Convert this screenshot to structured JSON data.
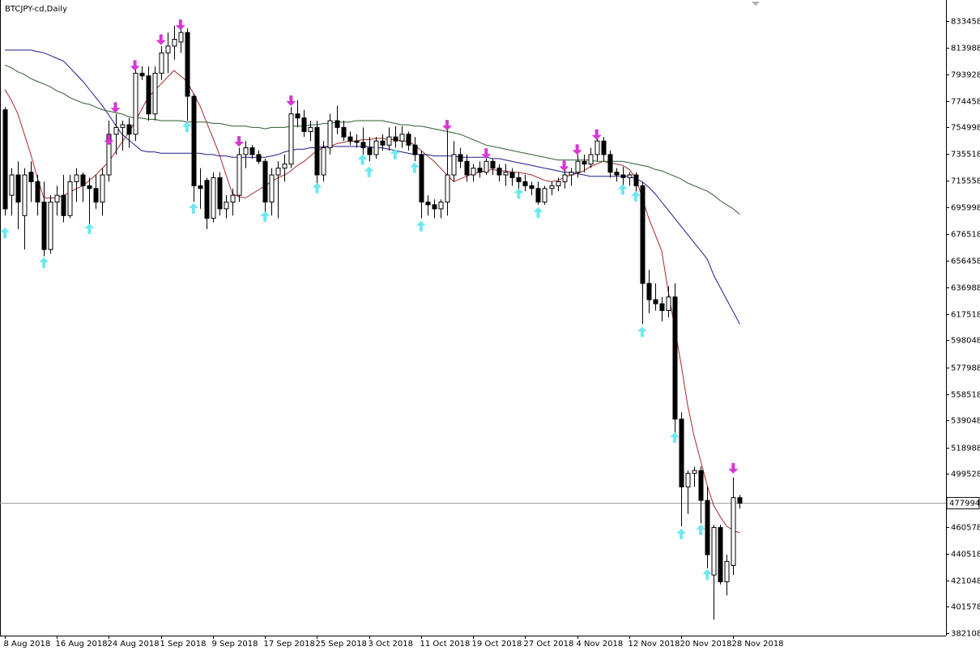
{
  "chart_data": {
    "type": "candlestick",
    "title": "BTCJPY-cd,Daily",
    "categories": [
      "8 Aug 2018",
      null,
      null,
      null,
      null,
      null,
      null,
      null,
      "16 Aug 2018",
      null,
      null,
      null,
      null,
      null,
      null,
      null,
      "24 Aug 2018",
      null,
      null,
      null,
      null,
      null,
      null,
      null,
      "1 Sep 2018",
      null,
      null,
      null,
      null,
      null,
      null,
      null,
      "9 Sep 2018",
      null,
      null,
      null,
      null,
      null,
      null,
      null,
      "17 Sep 2018",
      null,
      null,
      null,
      null,
      null,
      null,
      null,
      "25 Sep 2018",
      null,
      null,
      null,
      null,
      null,
      null,
      null,
      "3 Oct 2018",
      null,
      null,
      null,
      null,
      null,
      null,
      null,
      "11 Oct 2018",
      null,
      null,
      null,
      null,
      null,
      null,
      null,
      "19 Oct 2018",
      null,
      null,
      null,
      null,
      null,
      null,
      null,
      "27 Oct 2018",
      null,
      null,
      null,
      null,
      null,
      null,
      null,
      "4 Nov 2018",
      null,
      null,
      null,
      null,
      null,
      null,
      null,
      "12 Nov 2018",
      null,
      null,
      null,
      null,
      null,
      null,
      null,
      "20 Nov 2018",
      null,
      null,
      null,
      null,
      null,
      null,
      null,
      "28 Nov 2018",
      null
    ],
    "open": [
      768000,
      705000,
      720000,
      690000,
      722000,
      715000,
      700000,
      665000,
      700000,
      705000,
      690000,
      715000,
      720000,
      712000,
      710000,
      700000,
      720000,
      750000,
      755000,
      757000,
      750000,
      795000,
      793000,
      765000,
      795000,
      810000,
      815000,
      818000,
      825000,
      778000,
      712000,
      716000,
      688000,
      718000,
      695000,
      700000,
      705000,
      735000,
      740000,
      735000,
      730000,
      700000,
      720000,
      725000,
      728000,
      765000,
      762000,
      752000,
      755000,
      720000,
      740000,
      760000,
      755000,
      748000,
      745000,
      744000,
      740000,
      735000,
      745000,
      742000,
      748000,
      745000,
      750000,
      742000,
      735000,
      700000,
      698000,
      695000,
      700000,
      720000,
      735000,
      730000,
      720000,
      725000,
      722000,
      730000,
      725000,
      720000,
      722000,
      718000,
      715000,
      712000,
      710000,
      700000,
      710000,
      712000,
      715000,
      720000,
      722000,
      730000,
      728000,
      735000,
      745000,
      735000,
      722000,
      720000,
      718000,
      720000,
      712000,
      640000,
      628000,
      625000,
      620000,
      630000,
      540000,
      490000,
      500000,
      502000,
      480000,
      425000,
      460000,
      420000,
      432000,
      482000
    ],
    "high": [
      770000,
      725000,
      730000,
      725000,
      730000,
      720000,
      715000,
      705000,
      712000,
      720000,
      720000,
      725000,
      722000,
      718000,
      720000,
      725000,
      760000,
      765000,
      760000,
      762000,
      800000,
      800000,
      800000,
      800000,
      815000,
      825000,
      830000,
      828000,
      828000,
      780000,
      725000,
      718000,
      722000,
      722000,
      705000,
      710000,
      740000,
      745000,
      742000,
      738000,
      732000,
      725000,
      730000,
      735000,
      770000,
      775000,
      768000,
      760000,
      760000,
      745000,
      765000,
      771000,
      760000,
      752000,
      750000,
      755000,
      748000,
      748000,
      750000,
      755000,
      756000,
      756000,
      752000,
      748000,
      738000,
      705000,
      702000,
      702000,
      755000,
      745000,
      740000,
      735000,
      728000,
      730000,
      735000,
      732000,
      728000,
      728000,
      725000,
      722000,
      720000,
      715000,
      715000,
      712000,
      715000,
      718000,
      725000,
      725000,
      735000,
      735000,
      740000,
      748000,
      748000,
      738000,
      725000,
      726000,
      722000,
      722000,
      715000,
      650000,
      640000,
      630000,
      638000,
      640000,
      545000,
      502000,
      505000,
      505000,
      490000,
      462000,
      462000,
      440000,
      497000,
      484000
    ],
    "low": [
      690000,
      690000,
      680000,
      665000,
      700000,
      690000,
      660000,
      662000,
      690000,
      685000,
      688000,
      700000,
      700000,
      682000,
      695000,
      690000,
      715000,
      735000,
      738000,
      740000,
      745000,
      790000,
      760000,
      760000,
      790000,
      795000,
      805000,
      810000,
      760000,
      700000,
      695000,
      680000,
      685000,
      690000,
      688000,
      690000,
      700000,
      725000,
      732000,
      728000,
      692000,
      690000,
      688000,
      715000,
      725000,
      755000,
      748000,
      745000,
      712000,
      715000,
      735000,
      750000,
      745000,
      742000,
      740000,
      735000,
      730000,
      732000,
      738000,
      738000,
      740000,
      740000,
      738000,
      730000,
      688000,
      690000,
      688000,
      688000,
      690000,
      715000,
      725000,
      715000,
      715000,
      718000,
      720000,
      720000,
      715000,
      712000,
      712000,
      708000,
      708000,
      705000,
      698000,
      698000,
      705000,
      708000,
      710000,
      712000,
      718000,
      722000,
      725000,
      730000,
      730000,
      718000,
      715000,
      712000,
      712000,
      706000,
      610000,
      618000,
      620000,
      612000,
      615000,
      530000,
      461000,
      470000,
      490000,
      463000,
      430000,
      392000,
      418000,
      410000,
      425000,
      474000
    ],
    "close": [
      695000,
      720000,
      700000,
      720000,
      715000,
      700000,
      665000,
      700000,
      705000,
      690000,
      715000,
      720000,
      712000,
      710000,
      700000,
      720000,
      750000,
      755000,
      757000,
      750000,
      795000,
      793000,
      765000,
      795000,
      810000,
      815000,
      820000,
      825000,
      778000,
      712000,
      710000,
      688000,
      718000,
      695000,
      700000,
      705000,
      735000,
      740000,
      735000,
      730000,
      700000,
      720000,
      725000,
      728000,
      765000,
      762000,
      752000,
      755000,
      720000,
      740000,
      760000,
      755000,
      748000,
      745000,
      744000,
      740000,
      735000,
      745000,
      742000,
      748000,
      745000,
      750000,
      742000,
      735000,
      700000,
      698000,
      695000,
      700000,
      720000,
      735000,
      730000,
      720000,
      725000,
      722000,
      730000,
      725000,
      720000,
      722000,
      718000,
      715000,
      712000,
      710000,
      700000,
      710000,
      712000,
      715000,
      720000,
      722000,
      730000,
      728000,
      735000,
      745000,
      735000,
      722000,
      720000,
      718000,
      720000,
      712000,
      640000,
      628000,
      625000,
      620000,
      630000,
      540000,
      490000,
      500000,
      502000,
      480000,
      440000,
      460000,
      420000,
      435000,
      482000,
      478000
    ],
    "up_color": "#ffffff",
    "down_color": "#000000",
    "wick_color": "#000000",
    "lines": [
      {
        "color": "#a52a2a",
        "values": [
          783000,
          775000,
          765000,
          750000,
          735000,
          718000,
          703000,
          703000,
          703000,
          705000,
          707000,
          710000,
          712000,
          716000,
          720000,
          725000,
          730000,
          737000,
          744000,
          751000,
          759000,
          768000,
          777000,
          782000,
          787000,
          792000,
          797000,
          793000,
          789000,
          780000,
          771000,
          759000,
          747000,
          735000,
          720000,
          706000,
          704000,
          703000,
          706000,
          709000,
          712000,
          715000,
          718000,
          720000,
          723000,
          727000,
          730000,
          734000,
          738000,
          740000,
          741000,
          743000,
          744000,
          745000,
          745000,
          746000,
          746000,
          747000,
          747000,
          746000,
          746000,
          745000,
          745000,
          742000,
          738000,
          734000,
          730000,
          725000,
          720000,
          715000,
          717000,
          719000,
          721000,
          722000,
          723000,
          724000,
          723000,
          723000,
          722000,
          722000,
          721000,
          720000,
          718000,
          716000,
          715000,
          716000,
          718000,
          720000,
          721000,
          723000,
          726000,
          728000,
          730000,
          729000,
          728000,
          727000,
          724000,
          718000,
          703000,
          688000,
          676000,
          664000,
          634000,
          607000,
          580000,
          550000,
          527000,
          509000,
          491000,
          476000,
          468000,
          461000,
          458000,
          456000
        ]
      },
      {
        "color": "#1c1c8c",
        "values": [
          812000,
          812000,
          812000,
          812000,
          812000,
          811000,
          810000,
          808000,
          806000,
          804000,
          799000,
          794000,
          789000,
          783000,
          777000,
          771000,
          764000,
          757000,
          750000,
          746000,
          742000,
          738000,
          737000,
          737000,
          736000,
          736000,
          736000,
          736000,
          736000,
          736000,
          736000,
          735000,
          735000,
          734000,
          734000,
          733000,
          733000,
          733000,
          733000,
          733000,
          733000,
          734000,
          735000,
          737000,
          738000,
          739000,
          739000,
          740000,
          740000,
          741000,
          741000,
          741000,
          741000,
          741000,
          741000,
          741000,
          741000,
          740000,
          740000,
          739000,
          738000,
          737000,
          736000,
          735000,
          735000,
          735000,
          734000,
          734000,
          734000,
          734000,
          733000,
          733000,
          733000,
          733000,
          733000,
          732000,
          732000,
          731000,
          730000,
          729000,
          728000,
          727000,
          726000,
          725000,
          724000,
          723000,
          722000,
          722000,
          721000,
          720000,
          719000,
          719000,
          719000,
          719000,
          719000,
          719000,
          719000,
          717000,
          715000,
          711000,
          706000,
          700000,
          694000,
          688000,
          682000,
          676000,
          670000,
          664000,
          658000,
          646000,
          637000,
          628000,
          619000,
          610000
        ]
      },
      {
        "color": "#2e5e2e",
        "values": [
          801000,
          799000,
          796000,
          794000,
          791000,
          789000,
          787000,
          785000,
          782000,
          780000,
          777000,
          775000,
          773000,
          772000,
          770000,
          768000,
          767000,
          766000,
          765000,
          763000,
          762000,
          762000,
          761000,
          761000,
          760000,
          760000,
          760000,
          760000,
          759000,
          759000,
          759000,
          759000,
          758000,
          758000,
          757000,
          756000,
          756000,
          756000,
          755000,
          755000,
          754000,
          755000,
          755000,
          755000,
          756000,
          756000,
          756000,
          757000,
          757000,
          758000,
          758000,
          759000,
          759000,
          759000,
          760000,
          760000,
          760000,
          760000,
          760000,
          759000,
          758000,
          757000,
          757000,
          756000,
          756000,
          755000,
          754000,
          753000,
          752000,
          751000,
          750000,
          748000,
          746000,
          744000,
          742000,
          741000,
          740000,
          739000,
          738000,
          737000,
          736000,
          735000,
          734000,
          733000,
          732000,
          731000,
          731000,
          731000,
          731000,
          731000,
          731000,
          730000,
          730000,
          730000,
          730000,
          730000,
          729000,
          728000,
          727000,
          726000,
          724000,
          723000,
          721000,
          719000,
          717000,
          714000,
          712000,
          710000,
          708000,
          705000,
          701000,
          698000,
          695000,
          691000
        ]
      }
    ],
    "up_arrows": {
      "color": "#6ee8f0",
      "values": [
        677000,
        null,
        null,
        null,
        null,
        null,
        655000,
        null,
        null,
        null,
        null,
        null,
        null,
        680000,
        null,
        null,
        null,
        null,
        null,
        null,
        null,
        null,
        null,
        null,
        null,
        null,
        null,
        null,
        755000,
        695000,
        null,
        null,
        null,
        null,
        null,
        null,
        null,
        null,
        null,
        null,
        689000,
        null,
        null,
        null,
        null,
        null,
        null,
        null,
        710000,
        null,
        null,
        null,
        null,
        null,
        null,
        731000,
        722000,
        null,
        null,
        null,
        735000,
        null,
        null,
        725000,
        682000,
        null,
        null,
        null,
        null,
        null,
        null,
        null,
        null,
        null,
        null,
        null,
        null,
        null,
        null,
        706000,
        null,
        null,
        692000,
        null,
        null,
        null,
        null,
        null,
        null,
        null,
        null,
        null,
        null,
        null,
        null,
        709000,
        null,
        704000,
        604000,
        null,
        null,
        null,
        null,
        526000,
        455000,
        null,
        null,
        458000,
        425000,
        null,
        null,
        null,
        null,
        null
      ]
    },
    "down_arrows": {
      "color": "#d636d6",
      "values": [
        null,
        null,
        null,
        null,
        null,
        null,
        null,
        null,
        null,
        null,
        null,
        null,
        null,
        null,
        null,
        null,
        746000,
        770000,
        null,
        null,
        801000,
        null,
        null,
        null,
        820000,
        null,
        null,
        831000,
        null,
        null,
        null,
        null,
        null,
        null,
        null,
        null,
        745000,
        null,
        null,
        null,
        null,
        null,
        null,
        null,
        775000,
        null,
        null,
        null,
        null,
        null,
        null,
        null,
        null,
        null,
        null,
        null,
        null,
        null,
        null,
        null,
        null,
        null,
        null,
        null,
        null,
        null,
        null,
        null,
        757000,
        null,
        null,
        null,
        null,
        null,
        736000,
        null,
        null,
        null,
        null,
        null,
        null,
        null,
        null,
        null,
        null,
        null,
        727000,
        null,
        739000,
        null,
        null,
        750000,
        null,
        null,
        null,
        null,
        null,
        null,
        null,
        null,
        null,
        null,
        null,
        null,
        null,
        null,
        null,
        null,
        null,
        null,
        null,
        null,
        504000,
        null
      ]
    },
    "current_price": 477994,
    "ylim": [
      380317,
      848980
    ],
    "yticks": [
      833458,
      813988,
      793928,
      774458,
      754998,
      735518,
      715558,
      695998,
      676518,
      656458,
      636988,
      617518,
      598048,
      577988,
      558518,
      539048,
      518988,
      499528,
      460578,
      440518,
      421048,
      401578,
      382108
    ]
  }
}
